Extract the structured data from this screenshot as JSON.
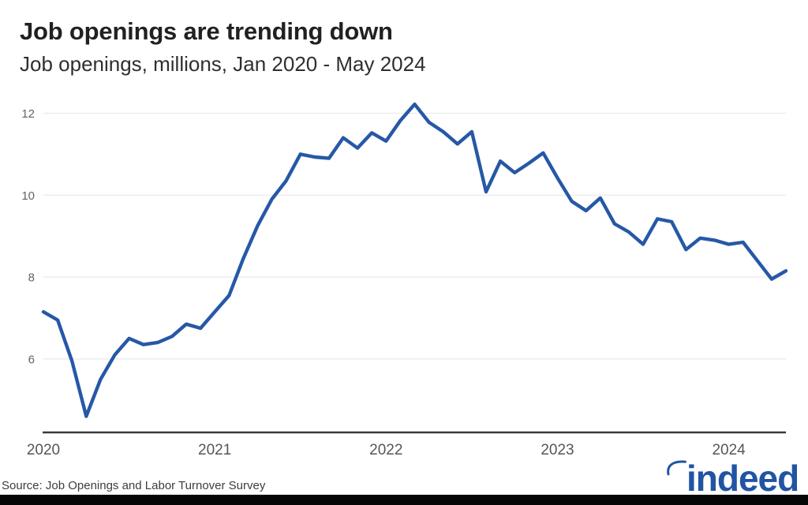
{
  "header": {
    "title": "Job openings are trending down",
    "subtitle": "Job openings, millions, Jan 2020 - May 2024"
  },
  "chart_data": {
    "type": "line",
    "title": "Job openings are trending down",
    "subtitle": "Job openings, millions, Jan 2020 - May 2024",
    "xlabel": "",
    "ylabel": "Job openings, millions",
    "legend": "none",
    "grid": "horizontal-only",
    "ylim": [
      4.2,
      12.5
    ],
    "y_tick_values": [
      12,
      10,
      8,
      6
    ],
    "y_tick_labels": [
      "12",
      "10",
      "8",
      "6"
    ],
    "x_tick_labels": [
      "2020",
      "2021",
      "2022",
      "2023",
      "2024"
    ],
    "x": [
      "Jan 2020",
      "Feb 2020",
      "Mar 2020",
      "Apr 2020",
      "May 2020",
      "Jun 2020",
      "Jul 2020",
      "Aug 2020",
      "Sep 2020",
      "Oct 2020",
      "Nov 2020",
      "Dec 2020",
      "Jan 2021",
      "Feb 2021",
      "Mar 2021",
      "Apr 2021",
      "May 2021",
      "Jun 2021",
      "Jul 2021",
      "Aug 2021",
      "Sep 2021",
      "Oct 2021",
      "Nov 2021",
      "Dec 2021",
      "Jan 2022",
      "Feb 2022",
      "Mar 2022",
      "Apr 2022",
      "May 2022",
      "Jun 2022",
      "Jul 2022",
      "Aug 2022",
      "Sep 2022",
      "Oct 2022",
      "Nov 2022",
      "Dec 2022",
      "Jan 2023",
      "Feb 2023",
      "Mar 2023",
      "Apr 2023",
      "May 2023",
      "Jun 2023",
      "Jul 2023",
      "Aug 2023",
      "Sep 2023",
      "Oct 2023",
      "Nov 2023",
      "Dec 2023",
      "Jan 2024",
      "Feb 2024",
      "Mar 2024",
      "Apr 2024",
      "May 2024"
    ],
    "series": [
      {
        "name": "Job openings (millions)",
        "color": "#2658a6",
        "values": [
          7.15,
          6.95,
          5.95,
          4.6,
          5.5,
          6.1,
          6.5,
          6.35,
          6.4,
          6.55,
          6.85,
          6.75,
          7.15,
          7.55,
          8.45,
          9.25,
          9.9,
          10.35,
          11.0,
          10.93,
          10.9,
          11.4,
          11.15,
          11.52,
          11.32,
          11.82,
          12.22,
          11.78,
          11.55,
          11.25,
          11.55,
          10.08,
          10.83,
          10.55,
          10.78,
          11.03,
          10.42,
          9.85,
          9.62,
          9.93,
          9.3,
          9.1,
          8.8,
          9.42,
          9.35,
          8.67,
          8.95,
          8.9,
          8.8,
          8.85,
          8.4,
          7.95,
          8.15
        ]
      }
    ]
  },
  "footer": {
    "source": "Source: Job Openings and Labor Turnover Survey",
    "logo_text": "indeed"
  },
  "colors": {
    "line": "#2658a6",
    "gridline": "#eaeaea",
    "axis_line": "#3a3a3a",
    "y_tick_label": "#646464",
    "x_tick_label": "#55565a",
    "title": "#212121",
    "subtitle": "#2f2f2f",
    "source": "#3d3d3d",
    "logo": "#2154a3",
    "footer_bar": "#060606"
  }
}
